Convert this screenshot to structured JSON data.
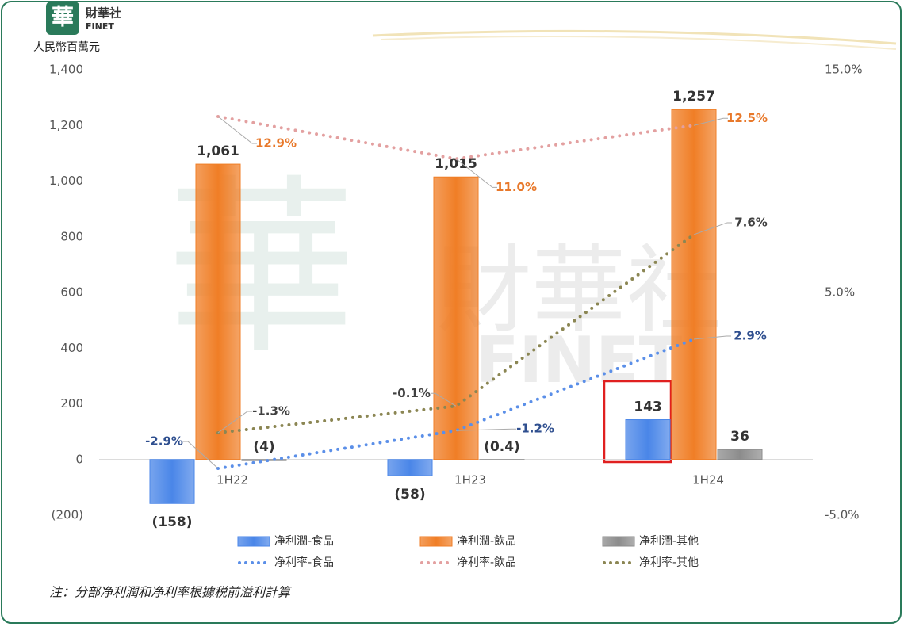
{
  "logo": {
    "mark": "華",
    "name": "財華社",
    "sub": "FINET"
  },
  "note": "注：分部净利潤和净利率根據税前溢利計算",
  "chart_data": {
    "type": "bar-line",
    "y_label": "人民幣百萬元",
    "categories": [
      "1H22",
      "1H23",
      "1H24"
    ],
    "ylim": [
      -200,
      1400
    ],
    "yticks": [
      {
        "value": -200,
        "label": "(200)"
      },
      0,
      200,
      400,
      600,
      800,
      {
        "value": 1000,
        "label": "1,000"
      },
      {
        "value": 1200,
        "label": "1,200"
      },
      {
        "value": 1400,
        "label": "1,400"
      }
    ],
    "y2lim": [
      -5,
      15
    ],
    "y2ticks": [
      {
        "value": -5,
        "label": "-5.0%"
      },
      {
        "value": 5,
        "label": "5.0%"
      },
      {
        "value": 15,
        "label": "15.0%"
      }
    ],
    "series": [
      {
        "name": "净利潤-食品",
        "type": "bar",
        "color": "#4a86e8",
        "values": [
          -158,
          -58,
          143
        ],
        "value_labels": [
          "(158)",
          "(58)",
          "143"
        ]
      },
      {
        "name": "净利潤-飲品",
        "type": "bar",
        "color": "#f07e26",
        "values": [
          1061,
          1015,
          1257
        ],
        "value_labels": [
          "1,061",
          "1,015",
          "1,257"
        ]
      },
      {
        "name": "净利潤-其他",
        "type": "bar",
        "color": "#8c8c8c",
        "values": [
          -4,
          -0.4,
          36
        ],
        "value_labels": [
          "(4)",
          "(0.4)",
          "36"
        ]
      },
      {
        "name": "净利率-食品",
        "type": "line",
        "axis": "y2",
        "color": "#5b8fe8",
        "label_color": "#2f4f8f",
        "values": [
          -2.9,
          -1.2,
          2.9
        ],
        "value_labels": [
          "-2.9%",
          "-1.2%",
          "2.9%"
        ]
      },
      {
        "name": "净利率-飲品",
        "type": "line",
        "axis": "y2",
        "color": "#e3a0a0",
        "label_color": "#e8782a",
        "values": [
          12.9,
          11.0,
          12.5
        ],
        "value_labels": [
          "12.9%",
          "11.0%",
          "12.5%"
        ]
      },
      {
        "name": "净利率-其他",
        "type": "line",
        "axis": "y2",
        "color": "#8b8653",
        "label_color": "#404040",
        "values": [
          -1.3,
          -0.1,
          7.6
        ],
        "value_labels": [
          "-1.3%",
          "-0.1%",
          "7.6%"
        ]
      }
    ]
  }
}
